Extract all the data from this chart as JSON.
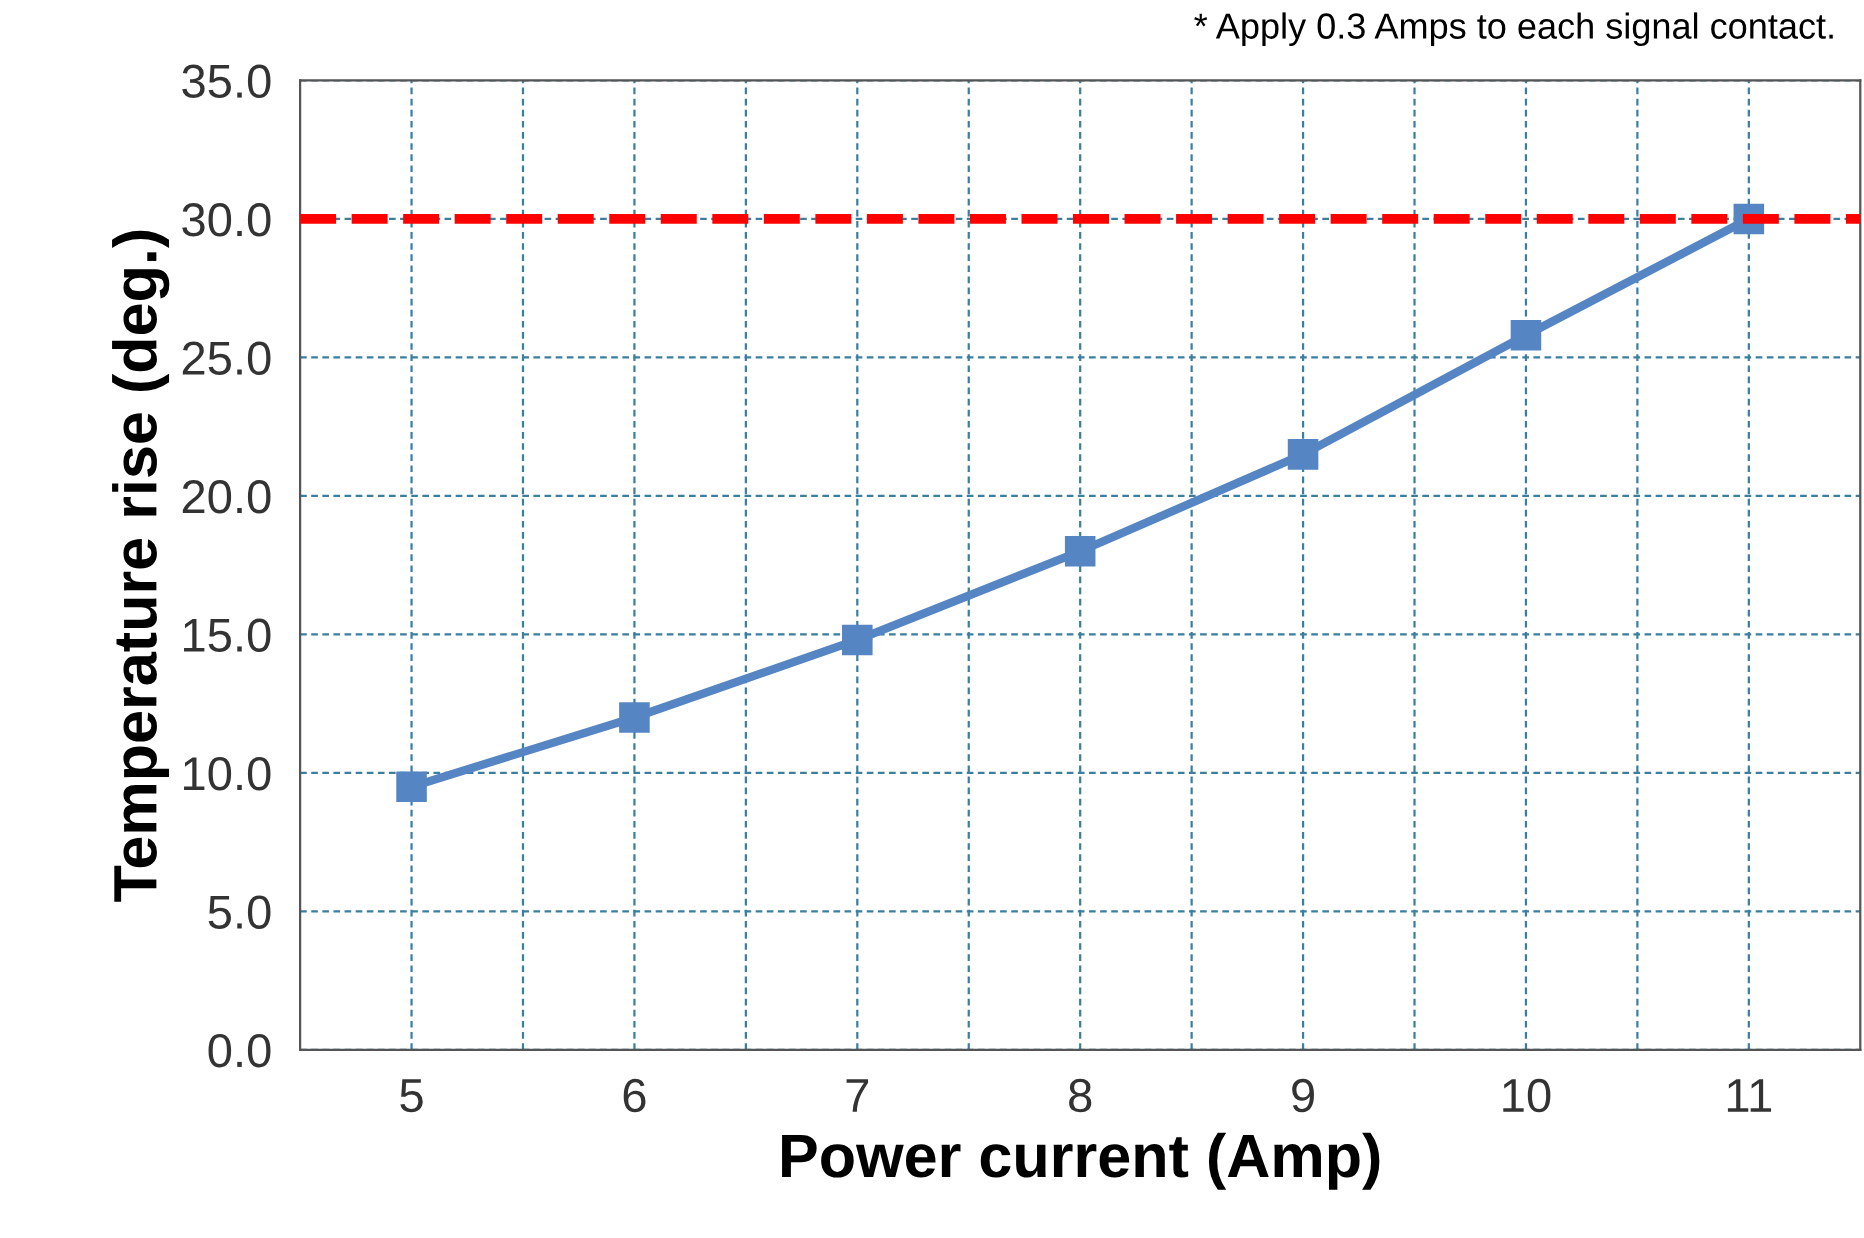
{
  "chart_data": {
    "type": "line",
    "xlabel": "Power current (Amp)",
    "ylabel": "Temperature rise (deg.)",
    "annotations": [
      "* Apply 0.3 Amps to each signal contact."
    ],
    "x": [
      5,
      6,
      7,
      8,
      9,
      10,
      11
    ],
    "series": [
      {
        "color": "#5685c4",
        "values": [
          9.5,
          12.0,
          14.8,
          18.0,
          21.5,
          25.8,
          30.0
        ]
      }
    ],
    "xlim": [
      4.5,
      11.5
    ],
    "xticks": [
      {
        "value": 5,
        "label": "5"
      },
      {
        "value": 5.5,
        "label": null
      },
      {
        "value": 6,
        "label": "6"
      },
      {
        "value": 6.5,
        "label": null
      },
      {
        "value": 7,
        "label": "7"
      },
      {
        "value": 7.5,
        "label": null
      },
      {
        "value": 8,
        "label": "8"
      },
      {
        "value": 8.5,
        "label": null
      },
      {
        "value": 9,
        "label": "9"
      },
      {
        "value": 9.5,
        "label": null
      },
      {
        "value": 10,
        "label": "10"
      },
      {
        "value": 10.5,
        "label": null
      },
      {
        "value": 11,
        "label": "11"
      }
    ],
    "ylim": [
      0,
      35
    ],
    "yticks": [
      {
        "value": 0,
        "label": "0.0"
      },
      {
        "value": 5,
        "label": "5.0"
      },
      {
        "value": 10,
        "label": "10.0"
      },
      {
        "value": 15,
        "label": "15.0"
      },
      {
        "value": 20,
        "label": "20.0"
      },
      {
        "value": 25,
        "label": "25.0"
      },
      {
        "value": 30,
        "label": "30.0"
      },
      {
        "value": 35,
        "label": "35.0"
      }
    ],
    "ref_lines": [
      {
        "axis": "y",
        "value": 30,
        "label": null,
        "color": "#ff0000",
        "line_style": "dashed"
      }
    ],
    "grid": true,
    "marker": "square",
    "line_style": "solid"
  }
}
